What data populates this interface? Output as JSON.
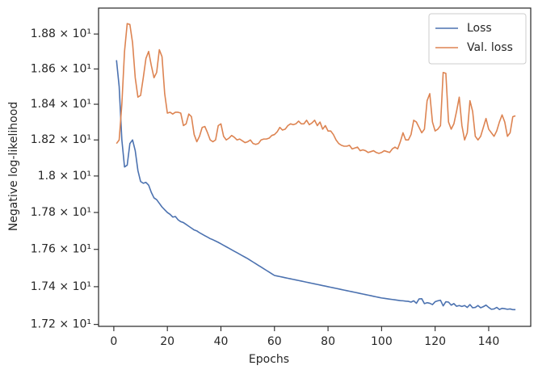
{
  "chart_data": {
    "type": "line",
    "xlabel": "Epochs",
    "ylabel": "Negative log-likelihood",
    "log_y": true,
    "legend": "upper right",
    "grid": false,
    "x": [
      1,
      2,
      3,
      4,
      5,
      6,
      7,
      8,
      9,
      10,
      11,
      12,
      13,
      14,
      15,
      16,
      17,
      18,
      19,
      20,
      21,
      22,
      23,
      24,
      25,
      26,
      27,
      28,
      29,
      30,
      31,
      32,
      33,
      34,
      35,
      36,
      37,
      38,
      39,
      40,
      41,
      42,
      43,
      44,
      45,
      46,
      47,
      48,
      49,
      50,
      51,
      52,
      53,
      54,
      55,
      56,
      57,
      58,
      59,
      60,
      61,
      62,
      63,
      64,
      65,
      66,
      67,
      68,
      69,
      70,
      71,
      72,
      73,
      74,
      75,
      76,
      77,
      78,
      79,
      80,
      81,
      82,
      83,
      84,
      85,
      86,
      87,
      88,
      89,
      90,
      91,
      92,
      93,
      94,
      95,
      96,
      97,
      98,
      99,
      100,
      101,
      102,
      103,
      104,
      105,
      106,
      107,
      108,
      109,
      110,
      111,
      112,
      113,
      114,
      115,
      116,
      117,
      118,
      119,
      120,
      121,
      122,
      123,
      124,
      125,
      126,
      127,
      128,
      129,
      130,
      131,
      132,
      133,
      134,
      135,
      136,
      137,
      138,
      139,
      140,
      141,
      142,
      143,
      144,
      145,
      146,
      147,
      148,
      149,
      150
    ],
    "series": [
      {
        "name": "Loss",
        "color": "#4c72b0",
        "values": [
          18.65,
          18.5,
          18.2,
          18.05,
          18.06,
          18.18,
          18.2,
          18.14,
          18.03,
          17.97,
          17.96,
          17.965,
          17.95,
          17.91,
          17.88,
          17.87,
          17.85,
          17.83,
          17.815,
          17.8,
          17.79,
          17.775,
          17.778,
          17.76,
          17.75,
          17.745,
          17.735,
          17.725,
          17.715,
          17.705,
          17.7,
          17.69,
          17.682,
          17.674,
          17.666,
          17.658,
          17.652,
          17.645,
          17.638,
          17.63,
          17.622,
          17.614,
          17.606,
          17.598,
          17.59,
          17.582,
          17.574,
          17.566,
          17.558,
          17.55,
          17.541,
          17.532,
          17.523,
          17.514,
          17.505,
          17.496,
          17.487,
          17.478,
          17.469,
          17.46,
          17.457,
          17.454,
          17.451,
          17.448,
          17.445,
          17.442,
          17.439,
          17.436,
          17.433,
          17.43,
          17.427,
          17.424,
          17.421,
          17.418,
          17.415,
          17.412,
          17.409,
          17.406,
          17.403,
          17.4,
          17.397,
          17.394,
          17.391,
          17.388,
          17.385,
          17.382,
          17.379,
          17.376,
          17.373,
          17.37,
          17.367,
          17.364,
          17.361,
          17.358,
          17.355,
          17.352,
          17.349,
          17.346,
          17.343,
          17.34,
          17.338,
          17.336,
          17.334,
          17.332,
          17.33,
          17.328,
          17.326,
          17.325,
          17.323,
          17.322,
          17.318,
          17.325,
          17.312,
          17.335,
          17.336,
          17.31,
          17.315,
          17.312,
          17.305,
          17.32,
          17.325,
          17.328,
          17.298,
          17.32,
          17.318,
          17.302,
          17.31,
          17.296,
          17.3,
          17.295,
          17.3,
          17.29,
          17.305,
          17.288,
          17.29,
          17.3,
          17.288,
          17.294,
          17.302,
          17.29,
          17.28,
          17.282,
          17.29,
          17.279,
          17.285,
          17.283,
          17.28,
          17.282,
          17.278,
          17.278
        ]
      },
      {
        "name": "Val. loss",
        "color": "#dd8452",
        "values": [
          18.18,
          18.2,
          18.4,
          18.7,
          18.86,
          18.855,
          18.75,
          18.55,
          18.44,
          18.45,
          18.55,
          18.66,
          18.7,
          18.62,
          18.55,
          18.58,
          18.71,
          18.67,
          18.46,
          18.35,
          18.355,
          18.345,
          18.355,
          18.355,
          18.35,
          18.28,
          18.29,
          18.345,
          18.33,
          18.23,
          18.19,
          18.22,
          18.27,
          18.275,
          18.24,
          18.2,
          18.19,
          18.2,
          18.28,
          18.29,
          18.22,
          18.2,
          18.21,
          18.225,
          18.215,
          18.2,
          18.205,
          18.195,
          18.185,
          18.19,
          18.2,
          18.18,
          18.175,
          18.18,
          18.2,
          18.205,
          18.205,
          18.21,
          18.225,
          18.23,
          18.245,
          18.27,
          18.255,
          18.26,
          18.28,
          18.29,
          18.285,
          18.29,
          18.305,
          18.29,
          18.29,
          18.31,
          18.285,
          18.295,
          18.31,
          18.28,
          18.3,
          18.26,
          18.28,
          18.25,
          18.25,
          18.23,
          18.2,
          18.18,
          18.17,
          18.165,
          18.165,
          18.17,
          18.15,
          18.155,
          18.16,
          18.14,
          18.145,
          18.14,
          18.13,
          18.135,
          18.14,
          18.13,
          18.125,
          18.13,
          18.14,
          18.135,
          18.13,
          18.15,
          18.16,
          18.15,
          18.19,
          18.24,
          18.2,
          18.2,
          18.23,
          18.31,
          18.3,
          18.27,
          18.24,
          18.26,
          18.42,
          18.46,
          18.3,
          18.25,
          18.26,
          18.28,
          18.58,
          18.575,
          18.3,
          18.26,
          18.29,
          18.36,
          18.44,
          18.28,
          18.2,
          18.24,
          18.42,
          18.36,
          18.22,
          18.2,
          18.22,
          18.27,
          18.32,
          18.26,
          18.24,
          18.22,
          18.25,
          18.3,
          18.34,
          18.3,
          18.22,
          18.24,
          18.33,
          18.335
        ]
      }
    ],
    "xlim": [
      -5.7,
      155.7
    ],
    "xticks": [
      0,
      20,
      40,
      60,
      80,
      100,
      120,
      140
    ],
    "ylim": [
      17.19,
      18.95
    ],
    "yticks": [
      {
        "value": 17.2,
        "label": "1.72 × 10¹"
      },
      {
        "value": 17.4,
        "label": "1.74 × 10¹"
      },
      {
        "value": 17.6,
        "label": "1.76 × 10¹"
      },
      {
        "value": 17.8,
        "label": "1.78 × 10¹"
      },
      {
        "value": 18,
        "label": "1.8 × 10¹"
      },
      {
        "value": 18.2,
        "label": "1.82 × 10¹"
      },
      {
        "value": 18.4,
        "label": "1.84 × 10¹"
      },
      {
        "value": 18.6,
        "label": "1.86 × 10¹"
      },
      {
        "value": 18.8,
        "label": "1.88 × 10¹"
      }
    ]
  }
}
